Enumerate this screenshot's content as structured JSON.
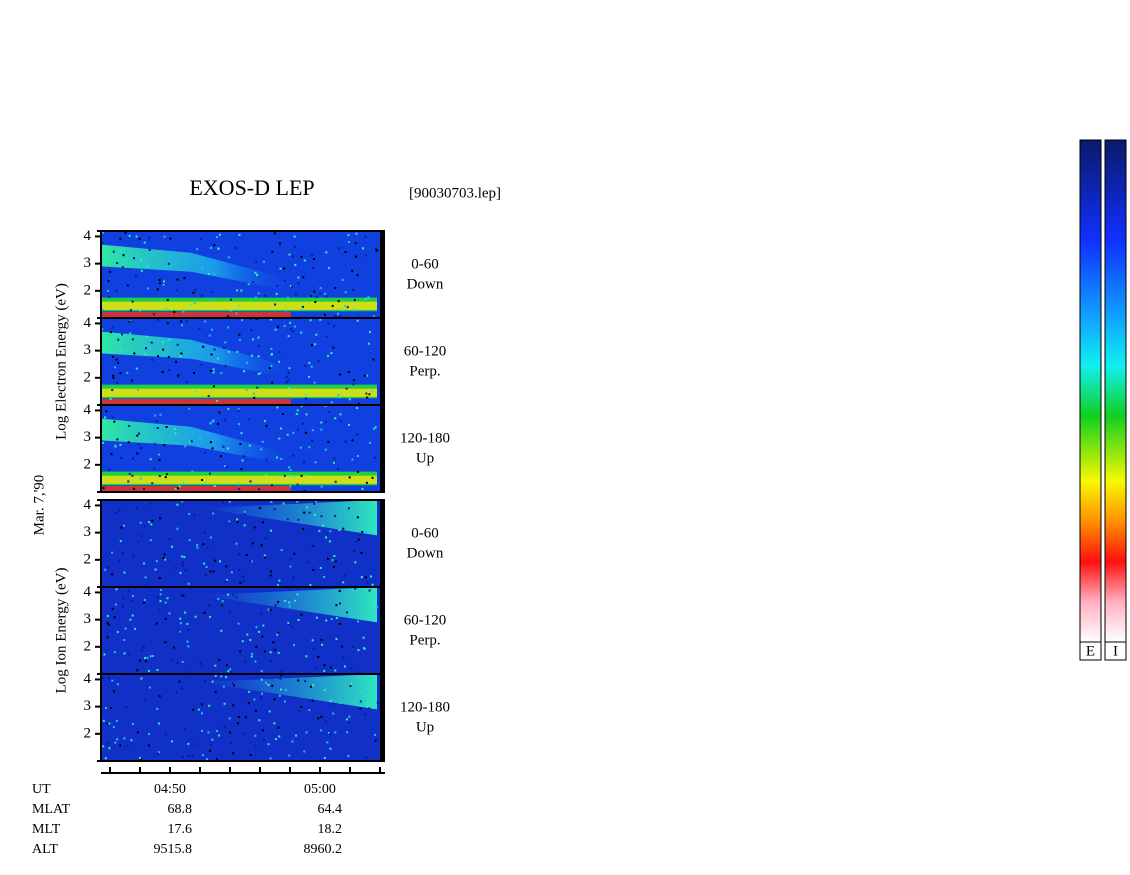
{
  "chart_data": {
    "type": "spectrogram",
    "title": "EXOS-D LEP",
    "file": "[90030703.lep]",
    "date": "Mar. 7,'90",
    "groups": [
      {
        "ylabel": "Log   Electron   Energy (eV)",
        "panels": [
          {
            "angle": "0-60",
            "direction": "Down"
          },
          {
            "angle": "60-120",
            "direction": "Perp."
          },
          {
            "angle": "120-180",
            "direction": "Up"
          }
        ]
      },
      {
        "ylabel": "Log   Ion   Energy (eV)",
        "panels": [
          {
            "angle": "0-60",
            "direction": "Down"
          },
          {
            "angle": "60-120",
            "direction": "Perp."
          },
          {
            "angle": "120-180",
            "direction": "Up"
          }
        ]
      }
    ],
    "ylim": [
      1,
      4.2
    ],
    "yticks": [
      2,
      3,
      4
    ],
    "ephemeris": {
      "labels": [
        "UT",
        "MLAT",
        "MLT",
        "ALT"
      ],
      "columns": [
        [
          "04:50",
          68.8,
          17.6,
          9515.8
        ],
        [
          "05:00",
          64.4,
          18.2,
          8960.2
        ]
      ]
    },
    "colorbars": [
      "E",
      "I"
    ]
  }
}
